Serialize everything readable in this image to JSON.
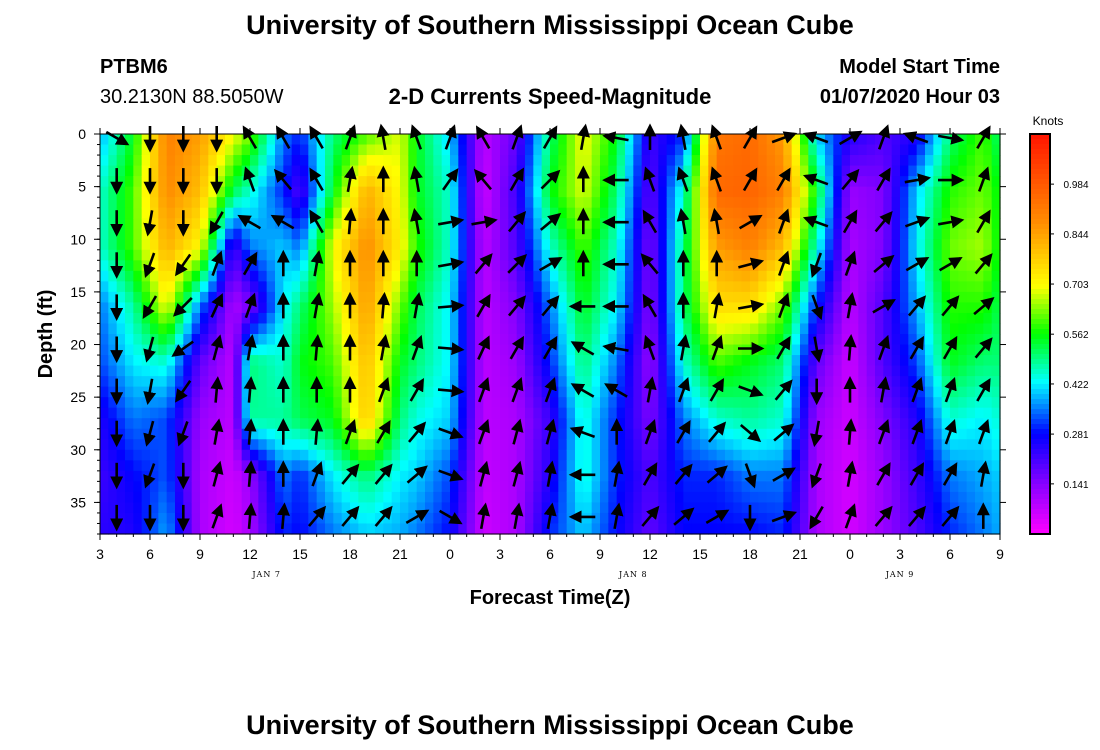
{
  "page": {
    "title": "University of Southern Mississippi Ocean Cube",
    "footer_title": "University of Southern Mississippi Ocean Cube",
    "station_id": "PTBM6",
    "station_coords": "30.2130N 88.5050W",
    "chart_title": "2-D Currents Speed-Magnitude",
    "model_start_label": "Model Start Time",
    "model_start_value": "01/07/2020 Hour 03"
  },
  "chart_data": {
    "type": "heatmap",
    "title": "2-D Currents Speed-Magnitude",
    "xlabel": "Forecast Time(Z)",
    "ylabel": "Depth (ft)",
    "x_tick_labels": [
      "3",
      "6",
      "9",
      "12",
      "15",
      "18",
      "21",
      "0",
      "3",
      "6",
      "9",
      "12",
      "15",
      "18",
      "21",
      "0",
      "3",
      "6",
      "9"
    ],
    "x_hours_start": 3,
    "x_hours_end": 57,
    "day_labels": [
      {
        "text": "JAN 7",
        "hour": 13
      },
      {
        "text": "JAN 8",
        "hour": 35
      },
      {
        "text": "JAN 9",
        "hour": 51
      }
    ],
    "y_ticks": [
      0,
      5,
      10,
      15,
      20,
      25,
      30,
      35
    ],
    "ylim": [
      0,
      38
    ],
    "y_inverted": true,
    "colorbar": {
      "label": "Knots",
      "ticks": [
        "0.984",
        "0.844",
        "0.703",
        "0.562",
        "0.422",
        "0.281",
        "0.141"
      ],
      "tick_values": [
        0.984,
        0.844,
        0.703,
        0.562,
        0.422,
        0.281,
        0.141
      ],
      "range": [
        0.0,
        1.125
      ]
    },
    "speed_profiles": [
      {
        "hour": 3,
        "values": [
          0.38,
          0.45,
          0.45,
          0.35,
          0.32,
          0.25,
          0.22,
          0.24
        ]
      },
      {
        "hour": 5,
        "values": [
          0.55,
          0.6,
          0.6,
          0.48,
          0.42,
          0.35,
          0.28,
          0.25
        ]
      },
      {
        "hour": 7,
        "values": [
          0.9,
          0.88,
          0.82,
          0.7,
          0.45,
          0.32,
          0.33,
          0.38
        ]
      },
      {
        "hour": 9,
        "values": [
          0.85,
          0.8,
          0.7,
          0.35,
          0.18,
          0.12,
          0.1,
          0.1
        ]
      },
      {
        "hour": 11,
        "values": [
          0.7,
          0.52,
          0.2,
          0.1,
          0.08,
          0.08,
          0.06,
          0.05
        ]
      },
      {
        "hour": 12,
        "values": [
          0.62,
          0.45,
          0.35,
          0.15,
          0.5,
          0.48,
          0.12,
          0.1
        ]
      },
      {
        "hour": 14,
        "values": [
          0.35,
          0.3,
          0.4,
          0.42,
          0.45,
          0.48,
          0.35,
          0.3
        ]
      },
      {
        "hour": 15,
        "values": [
          0.3,
          0.2,
          0.35,
          0.5,
          0.55,
          0.52,
          0.3,
          0.28
        ]
      },
      {
        "hour": 17,
        "values": [
          0.5,
          0.55,
          0.7,
          0.65,
          0.6,
          0.55,
          0.42,
          0.35
        ]
      },
      {
        "hour": 19,
        "values": [
          0.6,
          0.82,
          0.88,
          0.85,
          0.8,
          0.78,
          0.5,
          0.4
        ]
      },
      {
        "hour": 21,
        "values": [
          0.68,
          0.7,
          0.72,
          0.62,
          0.55,
          0.5,
          0.42,
          0.38
        ]
      },
      {
        "hour": 22,
        "values": [
          0.55,
          0.55,
          0.58,
          0.52,
          0.5,
          0.44,
          0.4,
          0.35
        ]
      },
      {
        "hour": 24,
        "values": [
          0.4,
          0.45,
          0.45,
          0.42,
          0.42,
          0.4,
          0.32,
          0.28
        ]
      },
      {
        "hour": 26,
        "values": [
          0.08,
          0.06,
          0.08,
          0.08,
          0.08,
          0.08,
          0.07,
          0.06
        ]
      },
      {
        "hour": 28,
        "values": [
          0.18,
          0.22,
          0.2,
          0.15,
          0.12,
          0.1,
          0.1,
          0.1
        ]
      },
      {
        "hour": 30,
        "values": [
          0.5,
          0.55,
          0.45,
          0.35,
          0.3,
          0.22,
          0.25,
          0.3
        ]
      },
      {
        "hour": 32,
        "values": [
          0.7,
          0.68,
          0.6,
          0.55,
          0.5,
          0.45,
          0.45,
          0.4
        ]
      },
      {
        "hour": 34,
        "values": [
          0.55,
          0.5,
          0.45,
          0.42,
          0.35,
          0.3,
          0.3,
          0.28
        ]
      },
      {
        "hour": 36,
        "values": [
          0.22,
          0.18,
          0.15,
          0.14,
          0.12,
          0.15,
          0.2,
          0.18
        ]
      },
      {
        "hour": 38,
        "values": [
          0.3,
          0.45,
          0.5,
          0.5,
          0.45,
          0.35,
          0.3,
          0.28
        ]
      },
      {
        "hour": 40,
        "values": [
          0.92,
          0.95,
          0.85,
          0.75,
          0.6,
          0.45,
          0.3,
          0.28
        ]
      },
      {
        "hour": 42,
        "values": [
          0.95,
          0.96,
          0.9,
          0.75,
          0.55,
          0.48,
          0.35,
          0.28
        ]
      },
      {
        "hour": 44,
        "values": [
          0.85,
          0.9,
          0.8,
          0.62,
          0.5,
          0.45,
          0.35,
          0.3
        ]
      },
      {
        "hour": 46,
        "values": [
          0.4,
          0.55,
          0.45,
          0.3,
          0.18,
          0.12,
          0.1,
          0.1
        ]
      },
      {
        "hour": 48,
        "values": [
          0.25,
          0.12,
          0.1,
          0.08,
          0.06,
          0.06,
          0.05,
          0.05
        ]
      },
      {
        "hour": 50,
        "values": [
          0.2,
          0.15,
          0.15,
          0.2,
          0.2,
          0.15,
          0.12,
          0.12
        ]
      },
      {
        "hour": 52,
        "values": [
          0.25,
          0.4,
          0.42,
          0.38,
          0.32,
          0.25,
          0.22,
          0.2
        ]
      },
      {
        "hour": 54,
        "values": [
          0.5,
          0.58,
          0.62,
          0.58,
          0.55,
          0.45,
          0.35,
          0.3
        ]
      },
      {
        "hour": 56,
        "values": [
          0.6,
          0.62,
          0.65,
          0.58,
          0.5,
          0.42,
          0.38,
          0.35
        ]
      },
      {
        "hour": 57,
        "values": [
          0.5,
          0.55,
          0.55,
          0.52,
          0.5,
          0.45,
          0.4,
          0.38
        ]
      }
    ],
    "vector_hours": [
      4,
      6,
      8,
      10,
      12,
      14,
      16,
      18,
      20,
      22,
      24,
      26,
      28,
      30,
      32,
      34,
      36,
      38,
      40,
      42,
      44,
      46,
      48,
      50,
      52,
      54,
      56
    ],
    "vector_depths": [
      0,
      4,
      8,
      12,
      16,
      20,
      24,
      28,
      32,
      36
    ],
    "vector_dir_deg": [
      [
        120,
        180,
        180,
        180,
        180,
        180,
        180,
        180,
        180,
        180
      ],
      [
        180,
        180,
        190,
        200,
        210,
        195,
        190,
        195,
        200,
        180
      ],
      [
        180,
        180,
        180,
        215,
        225,
        235,
        215,
        200,
        180,
        180
      ],
      [
        180,
        180,
        210,
        20,
        25,
        15,
        5,
        10,
        15,
        20
      ],
      [
        330,
        340,
        300,
        30,
        20,
        10,
        5,
        5,
        5,
        5
      ],
      [
        330,
        320,
        300,
        0,
        0,
        0,
        0,
        0,
        0,
        5
      ],
      [
        330,
        330,
        330,
        10,
        10,
        5,
        0,
        5,
        20,
        40
      ],
      [
        20,
        10,
        5,
        0,
        0,
        0,
        0,
        20,
        40,
        40
      ],
      [
        350,
        0,
        0,
        0,
        5,
        10,
        20,
        30,
        40,
        40
      ],
      [
        340,
        350,
        350,
        0,
        10,
        20,
        30,
        40,
        50,
        60
      ],
      [
        20,
        35,
        80,
        80,
        85,
        95,
        95,
        110,
        110,
        120
      ],
      [
        330,
        320,
        80,
        40,
        30,
        25,
        20,
        20,
        15,
        10
      ],
      [
        20,
        30,
        40,
        45,
        40,
        30,
        20,
        15,
        15,
        10
      ],
      [
        30,
        45,
        50,
        60,
        40,
        30,
        20,
        15,
        10,
        10
      ],
      [
        10,
        0,
        0,
        0,
        270,
        300,
        300,
        290,
        270,
        270
      ],
      [
        280,
        270,
        270,
        270,
        270,
        280,
        300,
        0,
        10,
        10
      ],
      [
        0,
        340,
        330,
        320,
        330,
        340,
        10,
        20,
        30,
        40
      ],
      [
        350,
        340,
        350,
        0,
        0,
        10,
        20,
        30,
        40,
        50
      ],
      [
        340,
        340,
        350,
        0,
        10,
        20,
        30,
        40,
        50,
        60
      ],
      [
        30,
        30,
        60,
        75,
        80,
        90,
        110,
        130,
        160,
        180
      ],
      [
        70,
        30,
        20,
        20,
        20,
        30,
        40,
        50,
        60,
        70
      ],
      [
        290,
        290,
        290,
        200,
        160,
        170,
        180,
        190,
        200,
        210
      ],
      [
        60,
        40,
        30,
        20,
        10,
        5,
        0,
        5,
        10,
        20
      ],
      [
        20,
        30,
        40,
        50,
        60,
        20,
        10,
        20,
        30,
        40
      ],
      [
        290,
        80,
        70,
        60,
        40,
        30,
        20,
        20,
        30,
        40
      ],
      [
        100,
        90,
        80,
        60,
        40,
        30,
        20,
        20,
        30,
        40
      ],
      [
        30,
        20,
        30,
        40,
        50,
        40,
        30,
        20,
        10,
        0
      ]
    ]
  }
}
